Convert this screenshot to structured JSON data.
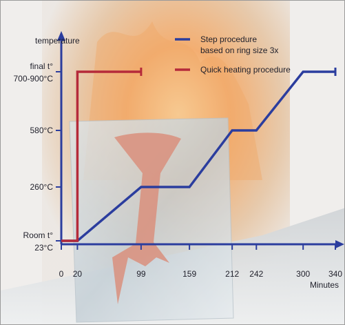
{
  "chart_data": {
    "type": "line",
    "title": "",
    "ylabel": "temperature",
    "xlabel": "Minutes",
    "x_ticks": [
      0,
      20,
      99,
      159,
      212,
      242,
      300,
      340
    ],
    "y_levels": [
      {
        "key": "room",
        "label_lines": [
          "Room t°",
          "23°C"
        ]
      },
      {
        "key": "t260",
        "label_lines": [
          "260°C"
        ]
      },
      {
        "key": "t580",
        "label_lines": [
          "580°C"
        ]
      },
      {
        "key": "final",
        "label_lines": [
          "final t°",
          "700-900°C"
        ]
      }
    ],
    "series": [
      {
        "name": "Step procedure based on ring size 3x",
        "legend_lines": [
          "Step procedure",
          "based on ring size 3x"
        ],
        "color": "#2b3d9e",
        "points": [
          {
            "x": 0,
            "y": "room"
          },
          {
            "x": 20,
            "y": "room"
          },
          {
            "x": 99,
            "y": "t260"
          },
          {
            "x": 159,
            "y": "t260"
          },
          {
            "x": 212,
            "y": "t580"
          },
          {
            "x": 242,
            "y": "t580"
          },
          {
            "x": 300,
            "y": "final"
          },
          {
            "x": 340,
            "y": "final"
          }
        ]
      },
      {
        "name": "Quick heating procedure",
        "legend_lines": [
          "Quick heating procedure"
        ],
        "color": "#b52a3a",
        "points": [
          {
            "x": 0,
            "y": "room"
          },
          {
            "x": 20,
            "y": "room"
          },
          {
            "x": 20,
            "y": "final"
          },
          {
            "x": 99,
            "y": "final"
          }
        ]
      }
    ]
  },
  "colors": {
    "axis": "#2b3d9e",
    "text": "#1f1f2a"
  }
}
